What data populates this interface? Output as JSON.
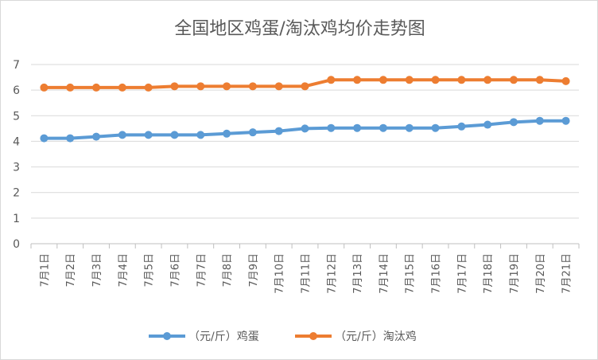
{
  "chart_data": {
    "type": "line",
    "title": "全国地区鸡蛋/淘汰鸡均价走势图",
    "categories": [
      "7月1日",
      "7月2日",
      "7月3日",
      "7月4日",
      "7月5日",
      "7月6日",
      "7月7日",
      "7月8日",
      "7月9日",
      "7月10日",
      "7月11日",
      "7月12日",
      "7月13日",
      "7月14日",
      "7月15日",
      "7月16日",
      "7月17日",
      "7月18日",
      "7月19日",
      "7月20日",
      "7月21日"
    ],
    "series": [
      {
        "name": "（元/斤）鸡蛋",
        "color": "#5b9bd5",
        "values": [
          4.12,
          4.12,
          4.18,
          4.25,
          4.25,
          4.25,
          4.25,
          4.3,
          4.35,
          4.4,
          4.5,
          4.52,
          4.52,
          4.52,
          4.52,
          4.52,
          4.58,
          4.65,
          4.75,
          4.8,
          4.8
        ]
      },
      {
        "name": "（元/斤）淘汰鸡",
        "color": "#ed7d31",
        "values": [
          6.1,
          6.1,
          6.1,
          6.1,
          6.1,
          6.15,
          6.15,
          6.15,
          6.15,
          6.15,
          6.15,
          6.4,
          6.4,
          6.4,
          6.4,
          6.4,
          6.4,
          6.4,
          6.4,
          6.4,
          6.35
        ]
      }
    ],
    "ylim": [
      0,
      7
    ],
    "yticks": [
      0,
      1,
      2,
      3,
      4,
      5,
      6,
      7
    ],
    "grid": true,
    "legend_position": "bottom"
  }
}
